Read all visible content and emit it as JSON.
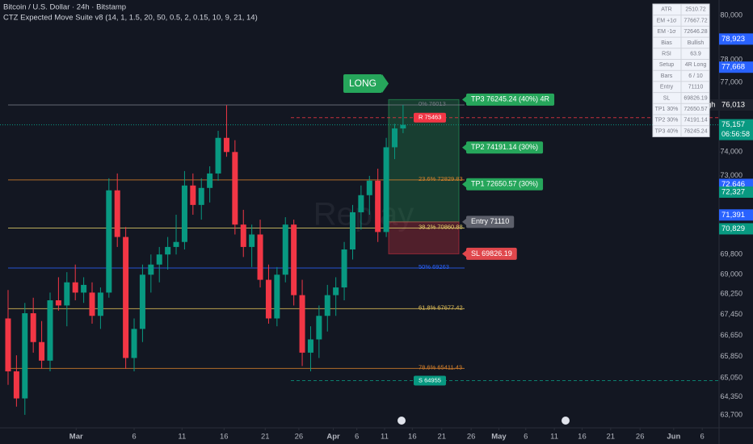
{
  "chart_data": {
    "type": "candlestick",
    "title": "Bitcoin / U.S. Dollar · 24h · Bitstamp",
    "subtitle": "CTZ Expected Move Suite v8 (14, 1, 1.5, 20, 50, 0.5, 2, 0.15, 10, 9, 21, 14)",
    "watermark": "Replay",
    "log_scale": true,
    "up_color": "#089981",
    "down_color": "#f23645",
    "x": [
      0,
      1,
      2,
      3,
      4,
      5,
      6,
      7,
      8,
      9,
      10,
      11,
      12,
      13,
      14,
      15,
      16,
      17,
      18,
      19,
      20,
      21,
      22,
      23,
      24,
      25,
      26,
      27,
      28,
      29,
      30,
      31,
      32,
      33,
      34,
      35,
      36,
      37,
      38,
      39,
      40,
      41,
      42,
      43,
      44,
      45,
      46,
      47
    ],
    "open": [
      67300,
      65300,
      64300,
      67500,
      66400,
      65700,
      68000,
      67800,
      68700,
      68300,
      68300,
      67400,
      68300,
      72400,
      70500,
      65800,
      66900,
      69000,
      69400,
      69800,
      70100,
      70300,
      72600,
      71800,
      72500,
      73100,
      74600,
      74000,
      71000,
      70100,
      70600,
      68800,
      67300,
      69000,
      71000,
      68200,
      66000,
      66500,
      67400,
      68200,
      68500,
      70000,
      71500,
      72200,
      72800,
      70700,
      74200,
      75000
    ],
    "high": [
      68400,
      65900,
      67900,
      68100,
      67200,
      68300,
      68900,
      69100,
      69400,
      68900,
      68700,
      68500,
      72900,
      73100,
      70900,
      67300,
      69400,
      69800,
      70100,
      70500,
      71400,
      73200,
      73100,
      72900,
      73400,
      74900,
      76000,
      74500,
      71600,
      71000,
      71200,
      69400,
      69300,
      71300,
      71200,
      68800,
      67000,
      67800,
      68600,
      68900,
      70300,
      71800,
      72600,
      73000,
      73300,
      74600,
      75200,
      76013
    ],
    "low": [
      64800,
      64000,
      63700,
      66000,
      65400,
      65300,
      67600,
      67000,
      68000,
      67900,
      67100,
      66900,
      68100,
      70100,
      65400,
      65300,
      66400,
      68300,
      68700,
      69200,
      69800,
      70000,
      71400,
      71200,
      71900,
      72800,
      73800,
      70600,
      69700,
      69300,
      68500,
      67100,
      67000,
      68700,
      67800,
      65500,
      65300,
      65800,
      66800,
      67400,
      68000,
      69600,
      70800,
      71400,
      70300,
      70500,
      73700,
      74800
    ],
    "close": [
      65300,
      64300,
      67500,
      66400,
      65700,
      68000,
      67800,
      68700,
      68300,
      68600,
      67400,
      68300,
      72400,
      70500,
      65800,
      66900,
      69000,
      69400,
      69800,
      70100,
      70300,
      72600,
      71800,
      72500,
      73100,
      74600,
      74000,
      71000,
      70100,
      70600,
      68800,
      67300,
      69000,
      71000,
      68200,
      66000,
      66500,
      67400,
      68200,
      68500,
      70000,
      71500,
      72200,
      72800,
      70700,
      74200,
      75000,
      75157
    ],
    "xlim": [
      -0.96,
      84.6
    ],
    "xticks": [
      {
        "value": 8.1,
        "label": "Mar"
      },
      {
        "value": 15,
        "label": "6"
      },
      {
        "value": 20.7,
        "label": "11"
      },
      {
        "value": 25.7,
        "label": "16"
      },
      {
        "value": 30.6,
        "label": "21"
      },
      {
        "value": 34.6,
        "label": "26"
      },
      {
        "value": 38.7,
        "label": "Apr"
      },
      {
        "value": 41.5,
        "label": "6"
      },
      {
        "value": 44.8,
        "label": "11"
      },
      {
        "value": 48.1,
        "label": "16"
      },
      {
        "value": 51.6,
        "label": "21"
      },
      {
        "value": 55.1,
        "label": "26"
      },
      {
        "value": 58.4,
        "label": "May"
      },
      {
        "value": 61.6,
        "label": "6"
      },
      {
        "value": 65,
        "label": "11"
      },
      {
        "value": 68.3,
        "label": "16"
      },
      {
        "value": 71.7,
        "label": "21"
      },
      {
        "value": 75.2,
        "label": "26"
      },
      {
        "value": 79.2,
        "label": "Jun"
      },
      {
        "value": 82.6,
        "label": "6"
      }
    ],
    "ylim": [
      63230,
      80700
    ],
    "yticks": [
      {
        "value": 80000,
        "label": "80,000"
      },
      {
        "value": 78000,
        "label": "78,000"
      },
      {
        "value": 77000,
        "label": "77,000"
      },
      {
        "value": 74000,
        "label": "74,000"
      },
      {
        "value": 73000,
        "label": "73,000"
      },
      {
        "value": 69800,
        "label": "69,800"
      },
      {
        "value": 69000,
        "label": "69,000"
      },
      {
        "value": 68250,
        "label": "68,250"
      },
      {
        "value": 67450,
        "label": "67,450"
      },
      {
        "value": 66650,
        "label": "66,650"
      },
      {
        "value": 65850,
        "label": "65,850"
      },
      {
        "value": 65050,
        "label": "65,050"
      },
      {
        "value": 64350,
        "label": "64,350"
      },
      {
        "value": 63700,
        "label": "63,700"
      }
    ],
    "price_labels": [
      {
        "value": 78923,
        "label": "78,923",
        "color": "#2962ff"
      },
      {
        "value": 77668,
        "label": "77,668",
        "color": "#2962ff"
      },
      {
        "value": 76013,
        "label": "76,013",
        "color": "#1e222d",
        "tag": "High"
      },
      {
        "value": 75157,
        "label": "75,157",
        "color": "#089981",
        "time": "06:56:58"
      },
      {
        "value": 72646,
        "label": "72,646",
        "color": "#2962ff"
      },
      {
        "value": 72327,
        "label": "72,327",
        "color": "#089981"
      },
      {
        "value": 71391,
        "label": "71,391",
        "color": "#2962ff"
      },
      {
        "value": 70829,
        "label": "70,829",
        "color": "#089981"
      }
    ],
    "levels": [
      {
        "value": 76013,
        "label": "0%  76013",
        "color": "#787b86"
      },
      {
        "value": 75463,
        "label": "R  75463",
        "color": "#f23645",
        "dashed": true
      },
      {
        "value": 72829.83,
        "label": "23.6%  72829.83",
        "color": "#d9822b"
      },
      {
        "value": 70860.88,
        "label": "38.2%  70860.88",
        "color": "#e6d36a"
      },
      {
        "value": 69263,
        "label": "50%  69263",
        "color": "#2962ff"
      },
      {
        "value": 67677.42,
        "label": "61.8%  67677.42",
        "color": "#e6c35a"
      },
      {
        "value": 65411.43,
        "label": "78.6%  65411.43",
        "color": "#d9822b"
      },
      {
        "value": 64955,
        "label": "S  64955",
        "color": "#089981",
        "dashed": true
      }
    ],
    "trade": {
      "direction": "LONG",
      "levels": [
        {
          "value": 76245.24,
          "label": "TP3  76245.24  (40%)  4R",
          "color": "#26a65b"
        },
        {
          "value": 74191.14,
          "label": "TP2  74191.14  (30%)",
          "color": "#26a65b"
        },
        {
          "value": 72650.57,
          "label": "TP1  72650.57  (30%)",
          "color": "#26a65b"
        },
        {
          "value": 71110,
          "label": "Entry  71110",
          "color": "#5d606b"
        },
        {
          "value": 69826.19,
          "label": "SL  69826.19",
          "color": "#e0474c"
        }
      ]
    },
    "table": {
      "rows": [
        [
          "ATR",
          "2510.72"
        ],
        [
          "EM +1σ",
          "77667.72"
        ],
        [
          "EM -1σ",
          "72646.28"
        ],
        [
          "Bias",
          "Bullish"
        ],
        [
          "RSI",
          "63.9"
        ],
        [
          "Setup",
          "4R Long"
        ],
        [
          "Bars",
          "6 / 10"
        ],
        [
          "Entry",
          "71110"
        ],
        [
          "SL",
          "69826.19"
        ],
        [
          "TP1 30%",
          "72650.57"
        ],
        [
          "TP2 30%",
          "74191.14"
        ],
        [
          "TP3 40%",
          "76245.24"
        ]
      ]
    }
  }
}
